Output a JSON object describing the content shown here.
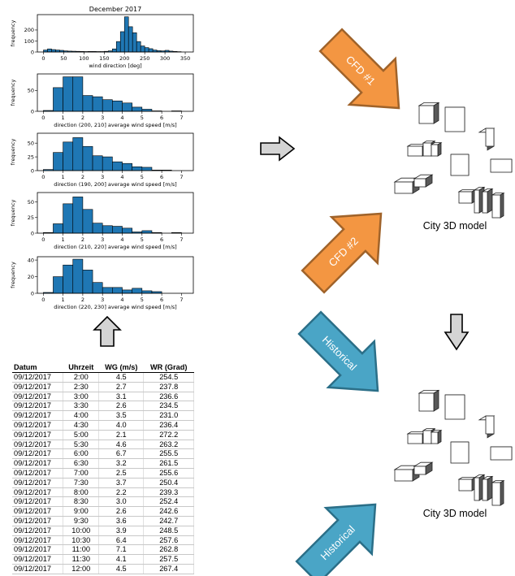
{
  "chart_data": [
    {
      "type": "bar",
      "title": "December 2017",
      "xlabel": "wind direction [deg]",
      "ylabel": "frequency",
      "xlim": [
        -15,
        370
      ],
      "ylim": [
        0,
        340
      ],
      "xticks": [
        0,
        50,
        100,
        150,
        200,
        250,
        300,
        350
      ],
      "yticks": [
        0,
        100,
        200
      ],
      "bin_width": 10,
      "bins_start": [
        0,
        10,
        20,
        30,
        40,
        50,
        60,
        70,
        80,
        90,
        100,
        110,
        120,
        130,
        140,
        150,
        160,
        170,
        180,
        190,
        200,
        210,
        220,
        230,
        240,
        250,
        260,
        270,
        280,
        290,
        300,
        310,
        320,
        330
      ],
      "values": [
        18,
        28,
        22,
        18,
        15,
        10,
        8,
        7,
        6,
        5,
        4,
        5,
        5,
        4,
        4,
        6,
        10,
        28,
        95,
        185,
        320,
        230,
        175,
        95,
        55,
        40,
        30,
        18,
        12,
        10,
        15,
        8,
        5,
        3
      ]
    },
    {
      "type": "bar",
      "title": "",
      "xlabel": "direction (200, 210] average wind speed [m/s]",
      "ylabel": "frequency",
      "xlim": [
        -0.3,
        7.6
      ],
      "ylim": [
        0,
        90
      ],
      "xticks": [
        0,
        1,
        2,
        3,
        4,
        5,
        6,
        7
      ],
      "yticks": [
        0,
        50
      ],
      "bin_width": 0.5,
      "bins_start": [
        0,
        0.5,
        1.0,
        1.5,
        2.0,
        2.5,
        3.0,
        3.5,
        4.0,
        4.5,
        5.0,
        5.5,
        6.0,
        6.5
      ],
      "values": [
        2,
        57,
        83,
        83,
        38,
        35,
        28,
        25,
        20,
        10,
        5,
        1,
        0,
        1
      ]
    },
    {
      "type": "bar",
      "title": "",
      "xlabel": "direction (190, 200] average wind speed [m/s]",
      "ylabel": "frequency",
      "xlim": [
        -0.3,
        7.6
      ],
      "ylim": [
        0,
        68
      ],
      "xticks": [
        0,
        1,
        2,
        3,
        4,
        5,
        6,
        7
      ],
      "yticks": [
        0,
        25,
        50
      ],
      "bin_width": 0.5,
      "bins_start": [
        0,
        0.5,
        1.0,
        1.5,
        2.0,
        2.5,
        3.0,
        3.5,
        4.0,
        4.5,
        5.0,
        5.5,
        6.0,
        6.5
      ],
      "values": [
        2,
        33,
        52,
        60,
        44,
        27,
        25,
        16,
        13,
        7,
        6,
        1,
        1,
        0
      ]
    },
    {
      "type": "bar",
      "title": "",
      "xlabel": "direction (210, 220] average wind speed [m/s]",
      "ylabel": "frequency",
      "xlim": [
        -0.3,
        7.6
      ],
      "ylim": [
        0,
        65
      ],
      "xticks": [
        0,
        1,
        2,
        3,
        4,
        5,
        6,
        7
      ],
      "yticks": [
        0,
        25,
        50
      ],
      "bin_width": 0.5,
      "bins_start": [
        0,
        0.5,
        1.0,
        1.5,
        2.0,
        2.5,
        3.0,
        3.5,
        4.0,
        4.5,
        5.0,
        5.5,
        6.0,
        6.5
      ],
      "values": [
        1,
        15,
        47,
        58,
        38,
        16,
        12,
        11,
        8,
        2,
        4,
        1,
        0,
        1
      ]
    },
    {
      "type": "bar",
      "title": "",
      "xlabel": "direction (220, 230] average wind speed [m/s]",
      "ylabel": "frequency",
      "xlim": [
        -0.3,
        7.6
      ],
      "ylim": [
        0,
        44
      ],
      "xticks": [
        0,
        1,
        2,
        3,
        4,
        5,
        6,
        7
      ],
      "yticks": [
        0,
        20,
        40
      ],
      "bin_width": 0.5,
      "bins_start": [
        0,
        0.5,
        1.0,
        1.5,
        2.0,
        2.5,
        3.0,
        3.5,
        4.0,
        4.5,
        5.0,
        5.5,
        6.0,
        6.5
      ],
      "values": [
        1,
        20,
        34,
        41,
        28,
        13,
        7,
        7,
        4,
        6,
        3,
        2,
        0,
        0
      ]
    }
  ],
  "colors": {
    "bar_fill": "#1f77b4",
    "bar_edge": "#000000",
    "cfd_arrow_fill": "#f39642",
    "cfd_arrow_edge": "#a0632a",
    "historical_arrow_fill": "#4aa5c6",
    "historical_arrow_edge": "#2b6f88",
    "gray_arrow_fill": "#d4d4d4",
    "building_side": "#595959"
  },
  "table": {
    "headers": [
      "Datum",
      "Uhrzeit",
      "WG (m/s)",
      "WR (Grad)"
    ],
    "rows": [
      [
        "09/12/2017",
        "2:00",
        "4.5",
        "254.5"
      ],
      [
        "09/12/2017",
        "2:30",
        "2.7",
        "237.8"
      ],
      [
        "09/12/2017",
        "3:00",
        "3.1",
        "236.6"
      ],
      [
        "09/12/2017",
        "3:30",
        "2.6",
        "234.5"
      ],
      [
        "09/12/2017",
        "4:00",
        "3.5",
        "231.0"
      ],
      [
        "09/12/2017",
        "4:30",
        "4.0",
        "236.4"
      ],
      [
        "09/12/2017",
        "5:00",
        "2.1",
        "272.2"
      ],
      [
        "09/12/2017",
        "5:30",
        "4.6",
        "263.2"
      ],
      [
        "09/12/2017",
        "6:00",
        "6.7",
        "255.5"
      ],
      [
        "09/12/2017",
        "6:30",
        "3.2",
        "261.5"
      ],
      [
        "09/12/2017",
        "7:00",
        "2.5",
        "255.6"
      ],
      [
        "09/12/2017",
        "7:30",
        "3.7",
        "250.4"
      ],
      [
        "09/12/2017",
        "8:00",
        "2.2",
        "239.3"
      ],
      [
        "09/12/2017",
        "8:30",
        "3.0",
        "252.4"
      ],
      [
        "09/12/2017",
        "9:00",
        "2.6",
        "242.6"
      ],
      [
        "09/12/2017",
        "9:30",
        "3.6",
        "242.7"
      ],
      [
        "09/12/2017",
        "10:00",
        "3.9",
        "248.5"
      ],
      [
        "09/12/2017",
        "10:30",
        "6.4",
        "257.6"
      ],
      [
        "09/12/2017",
        "11:00",
        "7.1",
        "262.8"
      ],
      [
        "09/12/2017",
        "11:30",
        "4.1",
        "257.5"
      ],
      [
        "09/12/2017",
        "12:00",
        "4.5",
        "267.4"
      ]
    ]
  },
  "labels": {
    "cfd1": "CFD #1",
    "cfd2": "CFD #2",
    "historical1": "Historical",
    "historical2": "Historical",
    "city_model_1": "City 3D model",
    "city_model_2": "City 3D model"
  },
  "icons": {
    "up_arrow": "up-arrow-icon",
    "right_arrow": "right-arrow-icon",
    "down_arrow": "down-arrow-icon"
  }
}
